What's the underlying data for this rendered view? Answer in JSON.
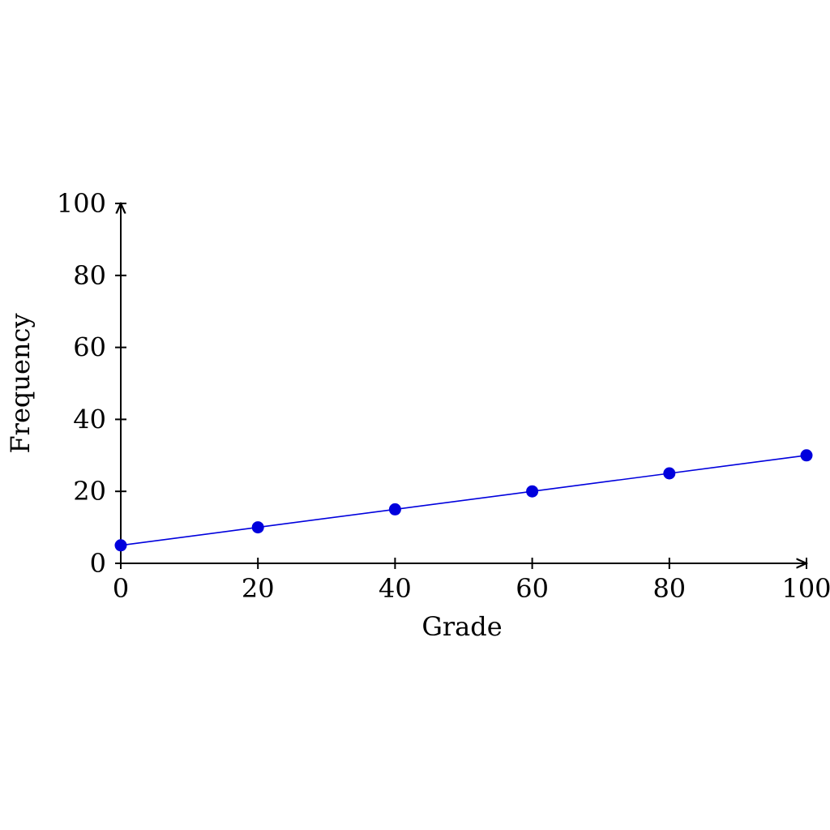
{
  "chart_data": {
    "type": "line",
    "title": "",
    "xlabel": "Grade",
    "ylabel": "Frequency",
    "xlim": [
      0,
      100
    ],
    "ylim": [
      0,
      100
    ],
    "xticks": [
      0,
      20,
      40,
      60,
      80,
      100
    ],
    "yticks": [
      0,
      20,
      40,
      60,
      80,
      100
    ],
    "grid": false,
    "legend": "none",
    "series": [
      {
        "x": [
          0,
          20,
          40,
          60,
          80,
          100
        ],
        "y": [
          5,
          10,
          15,
          20,
          25,
          30
        ],
        "color": "#0000dd",
        "marker": "circle"
      }
    ]
  }
}
